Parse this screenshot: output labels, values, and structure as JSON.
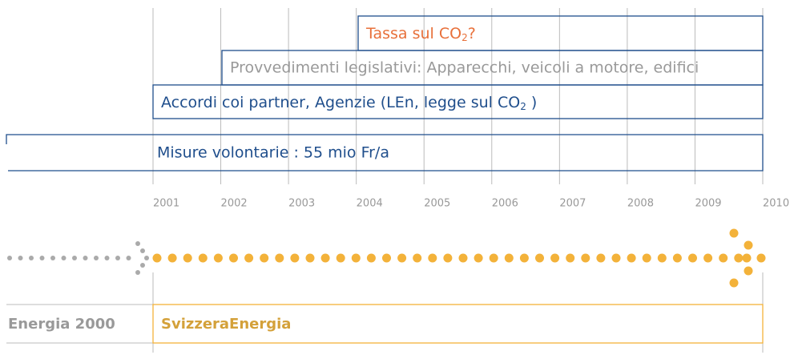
{
  "measures": [
    {
      "before": "Tassa sul CO",
      "sub": "2",
      "after": "?"
    },
    {
      "text": "Provvedimenti legislativi: Apparecchi, veicoli a motore, edifici"
    },
    {
      "before": "Accordi coi partner, Agenzie (LEn, legge sul CO",
      "sub": "2",
      "after": " )"
    },
    {
      "text": "Misure volontarie : 55 mio Fr/a"
    }
  ],
  "years": [
    "2001",
    "2002",
    "2003",
    "2004",
    "2005",
    "2006",
    "2007",
    "2008",
    "2009",
    "2010"
  ],
  "programs": {
    "previous": "Energia 2000",
    "current": "SvizzeraEnergia"
  }
}
